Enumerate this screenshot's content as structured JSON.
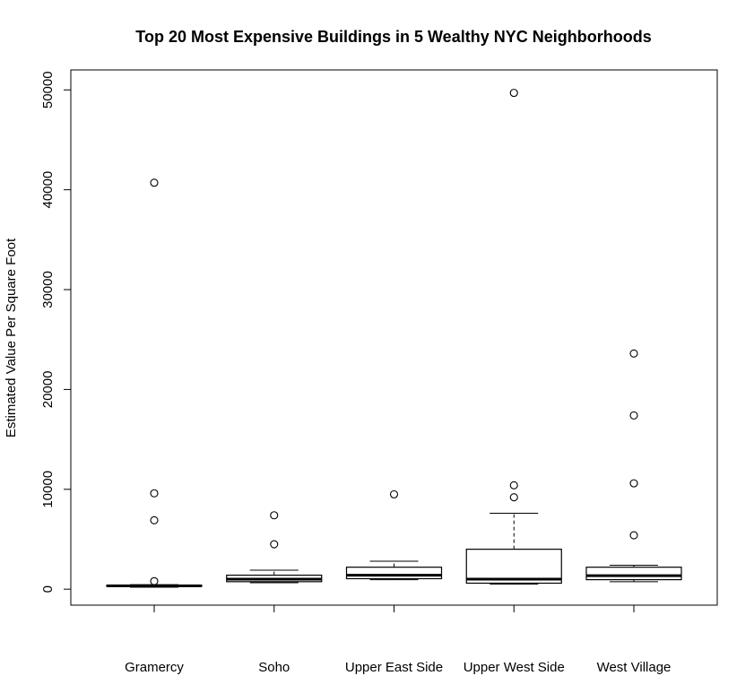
{
  "chart_data": {
    "type": "boxplot",
    "title": "Top 20 Most Expensive Buildings in 5 Wealthy NYC Neighborhoods",
    "xlabel": "",
    "ylabel": "Estimated Value Per Square Foot",
    "ylim": [
      -1600,
      52000
    ],
    "y_ticks": [
      0,
      10000,
      20000,
      30000,
      40000,
      50000
    ],
    "y_tick_labels": [
      "0",
      "10000",
      "20000",
      "30000",
      "40000",
      "50000"
    ],
    "grid": false,
    "categories": [
      "Gramercy",
      "Soho",
      "Upper East Side",
      "Upper West Side",
      "West Village"
    ],
    "boxes": [
      {
        "category": "Gramercy",
        "whisker_low": 200,
        "q1": 300,
        "median": 330,
        "q3": 380,
        "whisker_high": 450,
        "outliers": [
          40700,
          9600,
          6900,
          800
        ]
      },
      {
        "category": "Soho",
        "whisker_low": 650,
        "q1": 750,
        "median": 1000,
        "q3": 1400,
        "whisker_high": 1900,
        "outliers": [
          7400,
          4500
        ]
      },
      {
        "category": "Upper East Side",
        "whisker_low": 950,
        "q1": 1050,
        "median": 1400,
        "q3": 2200,
        "whisker_high": 2800,
        "outliers": [
          9500
        ]
      },
      {
        "category": "Upper West Side",
        "whisker_low": 500,
        "q1": 600,
        "median": 1000,
        "q3": 4000,
        "whisker_high": 7600,
        "outliers": [
          49700,
          10400,
          9200
        ]
      },
      {
        "category": "West Village",
        "whisker_low": 750,
        "q1": 950,
        "median": 1350,
        "q3": 2200,
        "whisker_high": 2400,
        "outliers": [
          23600,
          17400,
          10600,
          5400
        ]
      }
    ]
  }
}
